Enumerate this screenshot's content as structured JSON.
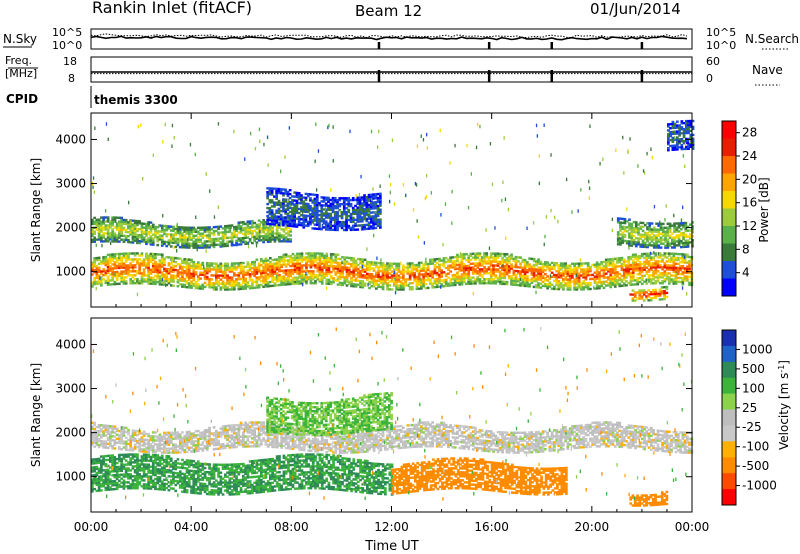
{
  "header": {
    "station": "Rankin Inlet (fitACF)",
    "beam": "Beam 12",
    "date": "01/Jun/2014"
  },
  "nsky": {
    "label": "N.Sky",
    "tick_top": "10^5",
    "tick_bottom": "10^0",
    "right_label": "N.Search",
    "right_tick_top": "10^5",
    "right_tick_bottom": "10^0"
  },
  "freq": {
    "label_line1": "Freq.",
    "label_line2": "[MHz]",
    "tick_top": "18",
    "tick_bottom": "8",
    "right_label": "Nave",
    "right_tick_top": "60",
    "right_tick_bottom": "0"
  },
  "cpid": {
    "label": "CPID",
    "value": "themis 3300"
  },
  "time_axis": {
    "xlabel": "Time UT",
    "ticks": [
      "00:00",
      "04:00",
      "08:00",
      "12:00",
      "16:00",
      "20:00",
      "00:00"
    ]
  },
  "colors": {
    "power": [
      "#0000ff",
      "#1f4fd8",
      "#3a7a3a",
      "#5ab14a",
      "#9ccc3d",
      "#f5d800",
      "#ffa500",
      "#ff6a00",
      "#e81e00",
      "#ff0000"
    ],
    "velocity": [
      "#ff0000",
      "#ff4a00",
      "#ff8c00",
      "#ffb000",
      "#c8c8c8",
      "#bebebe",
      "#8cd24a",
      "#3cb43c",
      "#2e8b57",
      "#1f63c8",
      "#1a2fb0"
    ],
    "ground_scatter": "#bebebe"
  },
  "chart_data": [
    {
      "type": "line",
      "title": "N.Sky / N.Search",
      "x": [
        0,
        2,
        4,
        6,
        8,
        10,
        12,
        14,
        16,
        18,
        20,
        22,
        24
      ],
      "series": [
        {
          "name": "N.Sky",
          "values": [
            1000,
            900,
            700,
            600,
            500,
            450,
            450,
            500,
            450,
            400,
            450,
            600,
            800
          ]
        },
        {
          "name": "N.Search",
          "values": [
            3000,
            2500,
            2000,
            1800,
            1600,
            1500,
            1500,
            1600,
            1500,
            1400,
            1500,
            1800,
            2200
          ]
        }
      ],
      "ylim_left": [
        1,
        100000
      ],
      "ylim_right": [
        1,
        100000
      ],
      "yscale": "log"
    },
    {
      "type": "line",
      "title": "Freq / Nave",
      "x": [
        0,
        24
      ],
      "series": [
        {
          "name": "Freq",
          "values": [
            12,
            12
          ]
        },
        {
          "name": "Nave",
          "values": [
            20,
            20
          ]
        }
      ],
      "ylim_left": [
        8,
        18
      ],
      "ylim_right": [
        0,
        60
      ]
    },
    {
      "type": "heatmap",
      "title": "Power",
      "xlabel": "Time UT",
      "ylabel": "Slant Range [km]",
      "xlim": [
        0,
        24
      ],
      "ylim": [
        200,
        4600
      ],
      "yticks": [
        1000,
        2000,
        3000,
        4000
      ],
      "colorbar": {
        "label": "Power [dB]",
        "ticks": [
          4,
          8,
          12,
          16,
          20,
          24,
          28
        ],
        "range": [
          0,
          30
        ]
      },
      "bands": [
        {
          "t_start": 0.0,
          "t_end": 24.0,
          "range_start": 650,
          "range_end": 1300,
          "value": 22
        },
        {
          "t_start": 0.0,
          "t_end": 8.0,
          "range_start": 1600,
          "range_end": 2100,
          "value": 14
        },
        {
          "t_start": 7.0,
          "t_end": 11.5,
          "range_start": 2000,
          "range_end": 2800,
          "value": 6
        },
        {
          "t_start": 21.0,
          "t_end": 24.0,
          "range_start": 1600,
          "range_end": 2200,
          "value": 14
        },
        {
          "t_start": 21.5,
          "t_end": 23.0,
          "range_start": 400,
          "range_end": 700,
          "value": 24
        },
        {
          "t_start": 23.0,
          "t_end": 24.0,
          "range_start": 3700,
          "range_end": 4300,
          "value": 6
        }
      ]
    },
    {
      "type": "heatmap",
      "title": "Velocity",
      "xlabel": "Time UT",
      "ylabel": "Slant Range [km]",
      "xlim": [
        0,
        24
      ],
      "ylim": [
        200,
        4600
      ],
      "yticks": [
        1000,
        2000,
        3000,
        4000
      ],
      "colorbar": {
        "label": "Velocity [m s^-1]",
        "ticks": [
          1000,
          500,
          100,
          25,
          -25,
          -100,
          -500,
          -1000
        ]
      },
      "bands": [
        {
          "t_start": 0.0,
          "t_end": 12.0,
          "range_start": 650,
          "range_end": 1400,
          "value": 500
        },
        {
          "t_start": 12.0,
          "t_end": 19.0,
          "range_start": 650,
          "range_end": 1300,
          "value": -300
        },
        {
          "t_start": 0.0,
          "t_end": 24.0,
          "range_start": 1600,
          "range_end": 2100,
          "value": 0
        },
        {
          "t_start": 7.0,
          "t_end": 12.0,
          "range_start": 2000,
          "range_end": 2800,
          "value": 100
        },
        {
          "t_start": 21.5,
          "t_end": 23.0,
          "range_start": 400,
          "range_end": 700,
          "value": -300
        }
      ]
    }
  ]
}
